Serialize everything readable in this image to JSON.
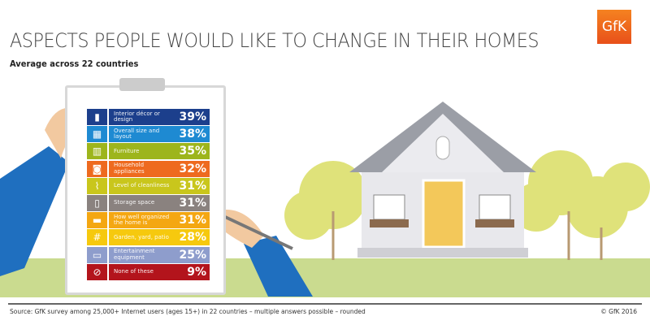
{
  "header": {
    "title": "ASPECTS PEOPLE WOULD LIKE TO CHANGE IN THEIR HOMES",
    "subtitle": "Average across 22 countries",
    "logo": "GfK"
  },
  "chart_data": {
    "type": "bar",
    "title": "ASPECTS PEOPLE WOULD LIKE TO CHANGE IN THEIR HOMES",
    "subtitle": "Average across 22 countries",
    "unit": "%",
    "categories": [
      "Interior décor or design",
      "Overall size and layout",
      "Furniture",
      "Household appliances",
      "Level of cleanliness",
      "Storage space",
      "How well organized the home is",
      "Garden, yard, patio",
      "Entertainment equipment",
      "None of these"
    ],
    "values": [
      39,
      38,
      35,
      32,
      31,
      31,
      31,
      28,
      25,
      9
    ],
    "labels": [
      "39%",
      "38%",
      "35%",
      "32%",
      "31%",
      "31%",
      "31%",
      "28%",
      "25%",
      "9%"
    ],
    "colors": [
      "#1c3f8c",
      "#1e8ad2",
      "#9db51c",
      "#ee6a1f",
      "#c9c61c",
      "#8a827f",
      "#f4a712",
      "#f6c90e",
      "#8e9dcc",
      "#b3141c"
    ],
    "icons": [
      "paint-roller-icon",
      "layout-icon",
      "wardrobe-icon",
      "washing-machine-icon",
      "broom-icon",
      "storage-box-icon",
      "sofa-icon",
      "fence-icon",
      "tv-console-icon",
      "prohibited-icon"
    ],
    "icon_glyphs": [
      "▮",
      "▦",
      "▥",
      "◙",
      "⌇",
      "▯",
      "▬",
      "#",
      "▭",
      "⊘"
    ]
  },
  "footer": {
    "source": "Source: GfK survey among 25,000+ Internet users (ages 15+) in 22 countries – multiple answers possible – rounded",
    "copyright": "© GfK 2016"
  }
}
